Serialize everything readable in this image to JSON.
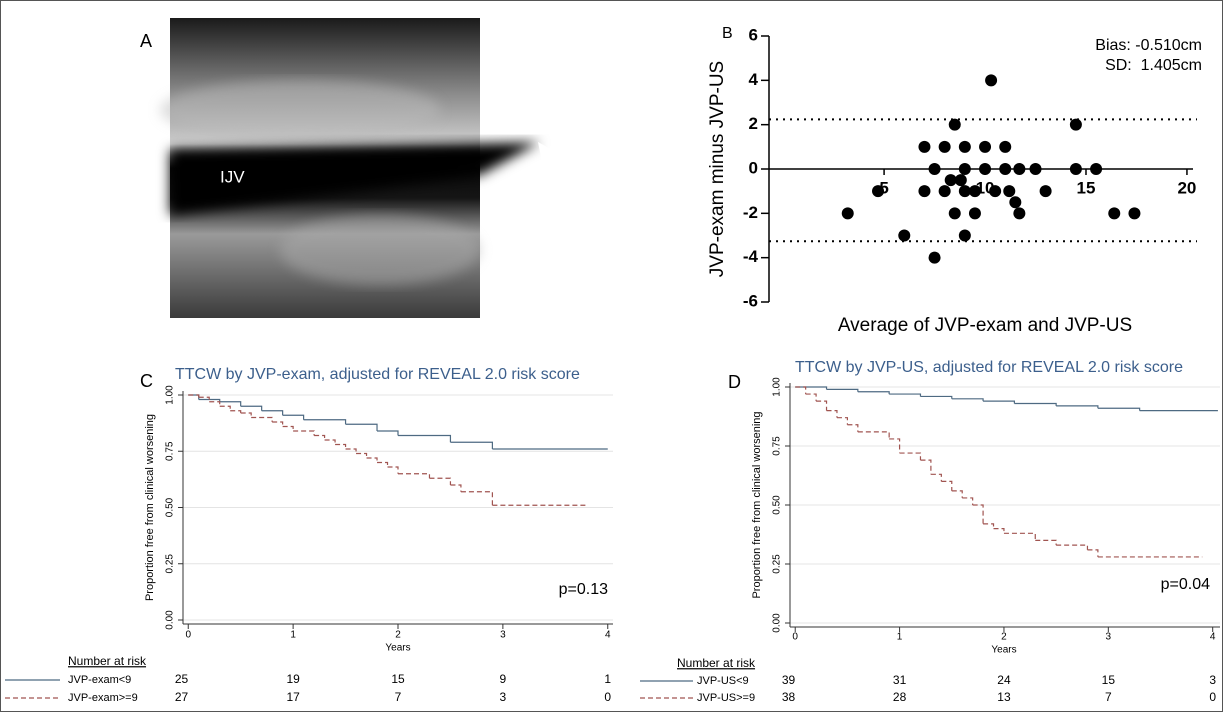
{
  "panel_a": {
    "label": "A",
    "structure_label": "IJV"
  },
  "chart_data": [
    {
      "type": "scatter",
      "panel_label": "B",
      "annotations": [
        "Bias: -0.510cm",
        "SD:  1.405cm"
      ],
      "xlabel": "Average of JVP-exam and JVP-US",
      "ylabel": "JVP-exam minus JVP-US",
      "x": [
        3.2,
        4.7,
        6.0,
        7.0,
        7.0,
        7.5,
        8.0,
        8.0,
        8.5,
        8.5,
        7.5,
        9.0,
        9.0,
        9.0,
        8.8,
        9.0,
        9.5,
        10.0,
        10.0,
        9.5,
        10.3,
        11.0,
        11.0,
        10.5,
        11.2,
        11.5,
        11.7,
        11.7,
        12.5,
        13.0,
        14.5,
        14.5,
        15.5,
        16.4,
        17.4,
        8.3
      ],
      "values": [
        -2,
        -1,
        -3,
        1,
        -1,
        -4,
        1,
        -1,
        2,
        -2,
        0,
        1,
        0,
        -1,
        -0.5,
        -3,
        -2,
        1,
        0,
        -1,
        4,
        1,
        0,
        -1,
        -1,
        -1.5,
        -2,
        0,
        0,
        -1,
        2,
        0,
        0,
        -2,
        -2,
        -0.5
      ],
      "color": "#000000",
      "hlines": [
        2.24,
        -3.26
      ],
      "xlim": [
        -0.7,
        20.3
      ],
      "xticks": [
        5,
        10,
        15,
        20
      ],
      "ylim": [
        -6,
        6
      ],
      "yticks": [
        -6,
        -4,
        -2,
        0,
        2,
        4,
        6
      ]
    },
    {
      "type": "step",
      "panel_label": "C",
      "title": "TTCW by JVP-exam, adjusted for REVEAL 2.0 risk score",
      "xlabel": "Years",
      "ylabel": "Proportion free from clinical worsening",
      "annotation": "p=0.13",
      "risk_title": "Number at risk",
      "grid": true,
      "xlim": [
        -0.05,
        4.05
      ],
      "xticks": [
        0,
        1,
        2,
        3,
        4
      ],
      "ylim": [
        0,
        1
      ],
      "yticks": [
        {
          "value": 0,
          "label": "0.00"
        },
        0.25,
        {
          "value": 0.5,
          "label": "0.50"
        },
        0.75,
        {
          "value": 1,
          "label": "1.00"
        }
      ],
      "series": [
        {
          "name": "JVP-exam<9",
          "color": "#4e6a82",
          "dash": false,
          "x": [
            0,
            0.1,
            0.3,
            0.5,
            0.7,
            0.9,
            1.1,
            1.5,
            1.8,
            2.0,
            2.5,
            2.9,
            4.0
          ],
          "values": [
            1,
            0.98,
            0.97,
            0.95,
            0.93,
            0.91,
            0.89,
            0.87,
            0.84,
            0.82,
            0.79,
            0.76,
            0.76
          ],
          "at_risk": [
            25,
            19,
            15,
            9,
            1
          ]
        },
        {
          "name": "JVP-exam>=9",
          "color": "#a05450",
          "dash": true,
          "x": [
            0,
            0.1,
            0.2,
            0.3,
            0.4,
            0.5,
            0.6,
            0.8,
            0.9,
            1.0,
            1.2,
            1.3,
            1.4,
            1.5,
            1.6,
            1.7,
            1.8,
            1.9,
            2.0,
            2.3,
            2.5,
            2.6,
            2.9,
            3.8
          ],
          "values": [
            1,
            0.99,
            0.97,
            0.95,
            0.93,
            0.92,
            0.9,
            0.88,
            0.86,
            0.84,
            0.82,
            0.8,
            0.78,
            0.76,
            0.74,
            0.72,
            0.7,
            0.68,
            0.65,
            0.63,
            0.6,
            0.57,
            0.51,
            0.51
          ],
          "at_risk": [
            27,
            17,
            7,
            3,
            0
          ]
        }
      ]
    },
    {
      "type": "step",
      "panel_label": "D",
      "title": "TTCW by JVP-US, adjusted for REVEAL 2.0 risk score",
      "xlabel": "Years",
      "ylabel": "Proportion free from clinical worsening",
      "annotation": "p=0.04",
      "risk_title": "Number at risk",
      "grid": true,
      "xlim": [
        -0.05,
        4.07
      ],
      "xticks": [
        0,
        1,
        2,
        3,
        4
      ],
      "ylim": [
        0,
        1
      ],
      "yticks": [
        {
          "value": 0,
          "label": "0.00"
        },
        0.25,
        {
          "value": 0.5,
          "label": "0.50"
        },
        0.75,
        {
          "value": 1,
          "label": "1.00"
        }
      ],
      "series": [
        {
          "name": "JVP-US<9",
          "color": "#4e6a82",
          "dash": false,
          "x": [
            0,
            0.3,
            0.6,
            0.9,
            1.2,
            1.5,
            1.8,
            2.1,
            2.5,
            2.9,
            3.3,
            4.05
          ],
          "values": [
            1,
            0.99,
            0.98,
            0.97,
            0.96,
            0.95,
            0.94,
            0.93,
            0.92,
            0.91,
            0.9,
            0.9
          ],
          "at_risk": [
            39,
            31,
            24,
            15,
            3
          ]
        },
        {
          "name": "JVP-US>=9",
          "color": "#a05450",
          "dash": true,
          "x": [
            0,
            0.1,
            0.2,
            0.3,
            0.4,
            0.5,
            0.6,
            0.9,
            1.0,
            1.2,
            1.3,
            1.4,
            1.5,
            1.6,
            1.7,
            1.8,
            1.9,
            2.0,
            2.3,
            2.5,
            2.8,
            2.9,
            3.9
          ],
          "values": [
            1,
            0.97,
            0.94,
            0.9,
            0.87,
            0.84,
            0.81,
            0.78,
            0.72,
            0.69,
            0.63,
            0.6,
            0.56,
            0.53,
            0.5,
            0.42,
            0.4,
            0.38,
            0.35,
            0.33,
            0.31,
            0.28,
            0.28
          ],
          "at_risk": [
            38,
            28,
            13,
            7,
            0
          ]
        }
      ]
    }
  ]
}
